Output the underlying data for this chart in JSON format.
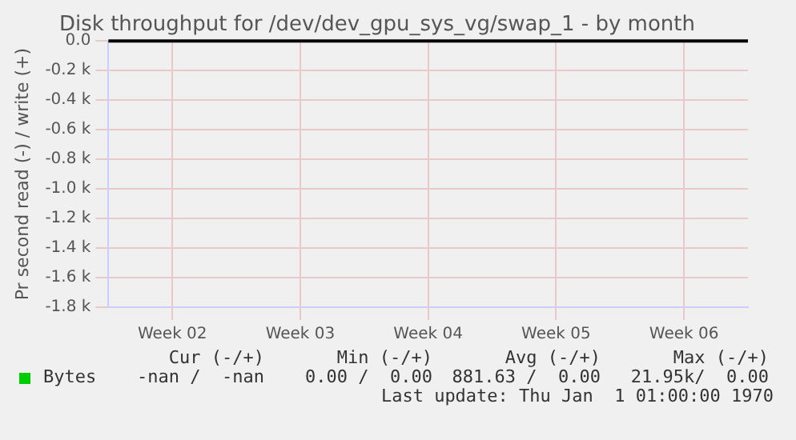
{
  "chart_data": {
    "type": "line",
    "title": "Disk throughput for /dev/dev_gpu_sys_vg/swap_1 - by month",
    "ylabel": "Pr second read (-) / write (+)",
    "categories": [
      "Week 02",
      "Week 03",
      "Week 04",
      "Week 05",
      "Week 06"
    ],
    "series": [
      {
        "name": "Bytes",
        "color": "#00cc00",
        "values": [
          null,
          null,
          null,
          null,
          null
        ]
      }
    ],
    "ylim": [
      -1800,
      0
    ],
    "yticks": [
      {
        "value": 0,
        "label": "0.0"
      },
      {
        "value": -200,
        "label": "-0.2 k"
      },
      {
        "value": -400,
        "label": "-0.4 k"
      },
      {
        "value": -600,
        "label": "-0.6 k"
      },
      {
        "value": -800,
        "label": "-0.8 k"
      },
      {
        "value": -1000,
        "label": "-1.0 k"
      },
      {
        "value": -1200,
        "label": "-1.2 k"
      },
      {
        "value": -1400,
        "label": "-1.4 k"
      },
      {
        "value": -1600,
        "label": "-1.6 k"
      },
      {
        "value": -1800,
        "label": "-1.8 k"
      }
    ],
    "ref_lines": [
      {
        "axis": "y",
        "value": 0,
        "color": "#000000"
      }
    ],
    "grid": true,
    "legend": "bottom left",
    "annotations": [
      "Cur (-/+)",
      "Min (-/+)",
      "Avg (-/+)",
      "Max (-/+)",
      "-nan /  -nan",
      "0.00 /  0.00",
      "881.63 /  0.00",
      "21.95k/  0.00",
      "Last update: Thu Jan  1 01:00:00 1970"
    ]
  }
}
